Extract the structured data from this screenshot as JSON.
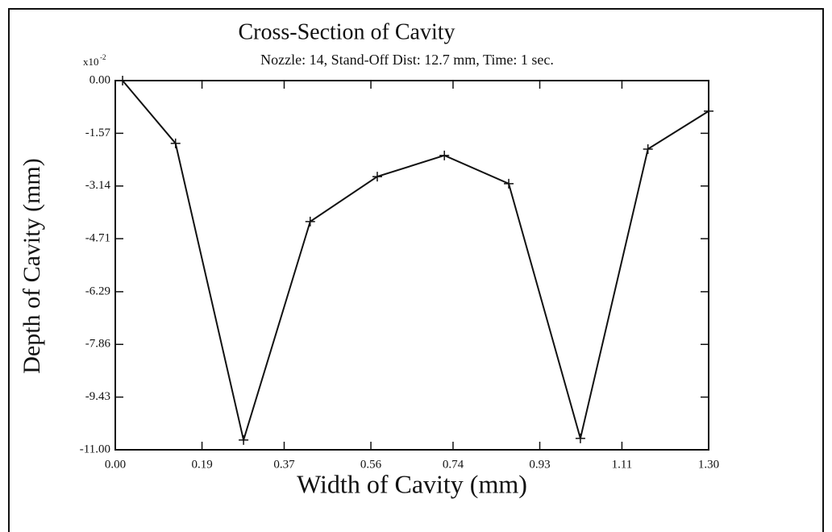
{
  "chart_data": {
    "type": "line",
    "title": "Cross-Section of Cavity",
    "subtitle": "Nozzle: 14, Stand-Off Dist: 12.7 mm, Time: 1 sec.",
    "x_label": "Width of Cavity (mm)",
    "y_label": "Depth of Cavity (mm)",
    "y_scale_base": "x10",
    "y_scale_exponent": "-2",
    "x": [
      0.016,
      0.132,
      0.281,
      0.427,
      0.574,
      0.721,
      0.862,
      1.019,
      1.167,
      1.3
    ],
    "series": [
      {
        "name": "Depth",
        "color": "#111111",
        "values": [
          0,
          -1.87,
          -10.71,
          -4.2,
          -2.86,
          -2.23,
          -3.07,
          -10.66,
          -2.04,
          -0.91
        ]
      }
    ],
    "xlim": [
      0,
      1.3
    ],
    "ylim": [
      -11,
      0
    ],
    "xticks": [
      {
        "value": 0,
        "label": "0.00"
      },
      {
        "value": 0.19,
        "label": "0.19"
      },
      {
        "value": 0.37,
        "label": "0.37"
      },
      {
        "value": 0.56,
        "label": "0.56"
      },
      {
        "value": 0.74,
        "label": "0.74"
      },
      {
        "value": 0.93,
        "label": "0.93"
      },
      {
        "value": 1.11,
        "label": "1.11"
      },
      {
        "value": 1.3,
        "label": "1.30"
      }
    ],
    "yticks": [
      {
        "value": 0,
        "label": "0.00"
      },
      {
        "value": -1.57,
        "label": "-1.57"
      },
      {
        "value": -3.14,
        "label": "-3.14"
      },
      {
        "value": -4.71,
        "label": "-4.71"
      },
      {
        "value": -6.29,
        "label": "-6.29"
      },
      {
        "value": -7.86,
        "label": "-7.86"
      },
      {
        "value": -9.43,
        "label": "-9.43"
      },
      {
        "value": -11,
        "label": "-11.00"
      }
    ],
    "grid": false
  }
}
